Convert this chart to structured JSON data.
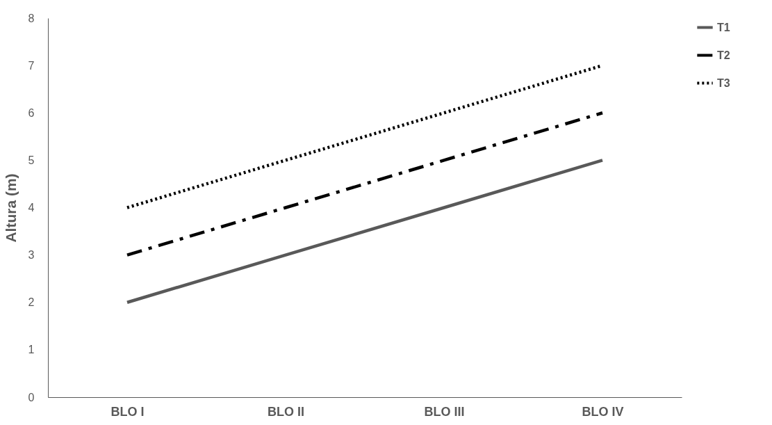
{
  "chart_data": {
    "type": "line",
    "ylabel": "Altura (m)",
    "categories": [
      "BLO I",
      "BLO II",
      "BLO III",
      "BLO IV"
    ],
    "series": [
      {
        "name": "T1",
        "color": "#595959",
        "values": [
          2,
          3,
          4,
          5
        ],
        "line_style": "solid"
      },
      {
        "name": "T2",
        "color": "#000000",
        "values": [
          3,
          4,
          5,
          6
        ],
        "line_style": "dashed"
      },
      {
        "name": "T3",
        "color": "#000000",
        "values": [
          4,
          5,
          6,
          7
        ],
        "line_style": "dotted"
      }
    ],
    "ylim": [
      0,
      8
    ],
    "yticks": [
      0,
      1,
      2,
      3,
      4,
      5,
      6,
      7,
      8
    ],
    "grid": false,
    "legend": "right",
    "marker": "none"
  }
}
